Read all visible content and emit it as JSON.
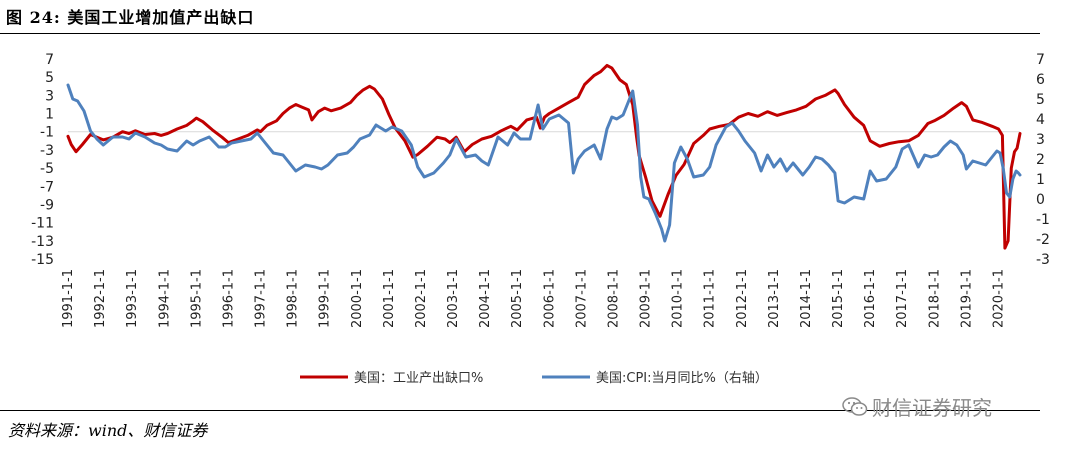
{
  "figure": {
    "title": "图 24:  美国工业增加值产出缺口",
    "source": "资料来源：wind、财信证券",
    "watermark": "财信证券研究",
    "watermark_icon": "wechat-icon"
  },
  "chart_data": {
    "type": "line",
    "title": "",
    "xlabel": "",
    "ylabel": "",
    "x_range": [
      1991.0,
      2020.67
    ],
    "x_tick_labels": [
      "1991-1-1",
      "1992-1-1",
      "1993-1-1",
      "1994-1-1",
      "1995-1-1",
      "1996-1-1",
      "1997-1-1",
      "1998-1-1",
      "1999-1-1",
      "2000-1-1",
      "2001-1-1",
      "2002-1-1",
      "2003-1-1",
      "2004-1-1",
      "2005-1-1",
      "2006-1-1",
      "2007-1-1",
      "2008-1-1",
      "2009-1-1",
      "2010-1-1",
      "2011-1-1",
      "2012-1-1",
      "2013-1-1",
      "2014-1-1",
      "2015-1-1",
      "2016-1-1",
      "2017-1-1",
      "2018-1-1",
      "2019-1-1",
      "2020-1-1"
    ],
    "y_left": {
      "ylim": [
        -15,
        7
      ],
      "ticks": [
        7,
        5,
        3,
        1,
        -1,
        -3,
        -5,
        -7,
        -9,
        -11,
        -13,
        -15
      ]
    },
    "y_right": {
      "ylim": [
        -3,
        7
      ],
      "ticks": [
        7,
        6,
        5,
        4,
        3,
        2,
        1,
        0,
        -1,
        -2,
        -3
      ]
    },
    "grid": false,
    "legend_position": "bottom",
    "series": [
      {
        "name": "美国：工业产出缺口%",
        "axis": "left",
        "color": "#c00000",
        "points": [
          [
            1991.0,
            -1.5
          ],
          [
            1991.1,
            -2.4
          ],
          [
            1991.25,
            -3.2
          ],
          [
            1991.45,
            -2.4
          ],
          [
            1991.7,
            -1.3
          ],
          [
            1991.9,
            -1.6
          ],
          [
            1992.1,
            -1.9
          ],
          [
            1992.4,
            -1.6
          ],
          [
            1992.7,
            -1.0
          ],
          [
            1992.9,
            -1.2
          ],
          [
            1993.1,
            -0.9
          ],
          [
            1993.4,
            -1.3
          ],
          [
            1993.7,
            -1.2
          ],
          [
            1993.9,
            -1.4
          ],
          [
            1994.1,
            -1.2
          ],
          [
            1994.4,
            -0.7
          ],
          [
            1994.7,
            -0.3
          ],
          [
            1994.9,
            0.2
          ],
          [
            1995.0,
            0.5
          ],
          [
            1995.2,
            0.1
          ],
          [
            1995.5,
            -0.8
          ],
          [
            1995.8,
            -1.6
          ],
          [
            1996.0,
            -2.2
          ],
          [
            1996.3,
            -1.8
          ],
          [
            1996.6,
            -1.4
          ],
          [
            1996.9,
            -0.8
          ],
          [
            1997.0,
            -1.0
          ],
          [
            1997.2,
            -0.3
          ],
          [
            1997.5,
            0.2
          ],
          [
            1997.7,
            1.0
          ],
          [
            1997.9,
            1.6
          ],
          [
            1998.1,
            2.0
          ],
          [
            1998.3,
            1.7
          ],
          [
            1998.5,
            1.4
          ],
          [
            1998.6,
            0.3
          ],
          [
            1998.8,
            1.2
          ],
          [
            1999.0,
            1.6
          ],
          [
            1999.2,
            1.3
          ],
          [
            1999.5,
            1.6
          ],
          [
            1999.8,
            2.2
          ],
          [
            2000.0,
            3.0
          ],
          [
            2000.2,
            3.6
          ],
          [
            2000.4,
            4.0
          ],
          [
            2000.55,
            3.7
          ],
          [
            2000.8,
            2.6
          ],
          [
            2001.0,
            0.9
          ],
          [
            2001.2,
            -0.6
          ],
          [
            2001.5,
            -2.0
          ],
          [
            2001.75,
            -3.8
          ],
          [
            2001.9,
            -3.5
          ],
          [
            2002.2,
            -2.6
          ],
          [
            2002.5,
            -1.6
          ],
          [
            2002.75,
            -1.8
          ],
          [
            2002.9,
            -2.2
          ],
          [
            2003.1,
            -1.6
          ],
          [
            2003.35,
            -3.2
          ],
          [
            2003.6,
            -2.4
          ],
          [
            2003.9,
            -1.8
          ],
          [
            2004.2,
            -1.5
          ],
          [
            2004.5,
            -0.9
          ],
          [
            2004.8,
            -0.4
          ],
          [
            2005.0,
            -0.8
          ],
          [
            2005.3,
            0.3
          ],
          [
            2005.6,
            0.6
          ],
          [
            2005.72,
            -0.6
          ],
          [
            2005.85,
            0.6
          ],
          [
            2006.0,
            1.0
          ],
          [
            2006.3,
            1.6
          ],
          [
            2006.6,
            2.2
          ],
          [
            2006.9,
            2.8
          ],
          [
            2007.1,
            4.2
          ],
          [
            2007.4,
            5.2
          ],
          [
            2007.6,
            5.6
          ],
          [
            2007.8,
            6.3
          ],
          [
            2007.95,
            6.0
          ],
          [
            2008.2,
            4.7
          ],
          [
            2008.4,
            4.2
          ],
          [
            2008.6,
            2.0
          ],
          [
            2008.72,
            -1.6
          ],
          [
            2008.8,
            -3.6
          ],
          [
            2009.0,
            -6.0
          ],
          [
            2009.2,
            -8.6
          ],
          [
            2009.45,
            -10.3
          ],
          [
            2009.7,
            -7.9
          ],
          [
            2009.95,
            -5.8
          ],
          [
            2010.2,
            -4.6
          ],
          [
            2010.5,
            -2.3
          ],
          [
            2010.8,
            -1.4
          ],
          [
            2011.0,
            -0.7
          ],
          [
            2011.3,
            -0.4
          ],
          [
            2011.6,
            -0.2
          ],
          [
            2011.9,
            0.6
          ],
          [
            2012.2,
            1.0
          ],
          [
            2012.5,
            0.7
          ],
          [
            2012.8,
            1.2
          ],
          [
            2013.1,
            0.8
          ],
          [
            2013.4,
            1.1
          ],
          [
            2013.7,
            1.4
          ],
          [
            2014.0,
            1.8
          ],
          [
            2014.3,
            2.6
          ],
          [
            2014.6,
            3.0
          ],
          [
            2014.9,
            3.6
          ],
          [
            2015.0,
            3.2
          ],
          [
            2015.2,
            2.0
          ],
          [
            2015.5,
            0.6
          ],
          [
            2015.8,
            -0.3
          ],
          [
            2016.0,
            -2.0
          ],
          [
            2016.3,
            -2.6
          ],
          [
            2016.6,
            -2.3
          ],
          [
            2016.9,
            -2.1
          ],
          [
            2017.2,
            -2.0
          ],
          [
            2017.5,
            -1.4
          ],
          [
            2017.8,
            -0.1
          ],
          [
            2018.0,
            0.2
          ],
          [
            2018.3,
            0.8
          ],
          [
            2018.6,
            1.6
          ],
          [
            2018.85,
            2.2
          ],
          [
            2019.0,
            1.8
          ],
          [
            2019.2,
            0.3
          ],
          [
            2019.5,
            0.0
          ],
          [
            2019.8,
            -0.4
          ],
          [
            2020.0,
            -0.7
          ],
          [
            2020.12,
            -1.4
          ],
          [
            2020.2,
            -13.8
          ],
          [
            2020.3,
            -13.0
          ],
          [
            2020.4,
            -5.0
          ],
          [
            2020.5,
            -3.2
          ],
          [
            2020.58,
            -2.8
          ],
          [
            2020.67,
            -1.2
          ]
        ]
      },
      {
        "name": "美国:CPI:当月同比%（右轴）",
        "axis": "right",
        "color": "#4f81bd",
        "points": [
          [
            1991.0,
            5.7
          ],
          [
            1991.15,
            5.0
          ],
          [
            1991.3,
            4.9
          ],
          [
            1991.5,
            4.4
          ],
          [
            1991.7,
            3.4
          ],
          [
            1991.9,
            3.0
          ],
          [
            1992.1,
            2.7
          ],
          [
            1992.4,
            3.1
          ],
          [
            1992.7,
            3.1
          ],
          [
            1992.9,
            3.0
          ],
          [
            1993.1,
            3.3
          ],
          [
            1993.4,
            3.1
          ],
          [
            1993.7,
            2.8
          ],
          [
            1993.9,
            2.7
          ],
          [
            1994.1,
            2.5
          ],
          [
            1994.4,
            2.4
          ],
          [
            1994.7,
            2.9
          ],
          [
            1994.9,
            2.7
          ],
          [
            1995.1,
            2.9
          ],
          [
            1995.4,
            3.1
          ],
          [
            1995.7,
            2.6
          ],
          [
            1995.9,
            2.6
          ],
          [
            1996.1,
            2.8
          ],
          [
            1996.4,
            2.9
          ],
          [
            1996.7,
            3.0
          ],
          [
            1996.9,
            3.3
          ],
          [
            1997.1,
            2.9
          ],
          [
            1997.4,
            2.3
          ],
          [
            1997.7,
            2.2
          ],
          [
            1997.9,
            1.8
          ],
          [
            1998.1,
            1.4
          ],
          [
            1998.4,
            1.7
          ],
          [
            1998.7,
            1.6
          ],
          [
            1998.9,
            1.5
          ],
          [
            1999.1,
            1.7
          ],
          [
            1999.4,
            2.2
          ],
          [
            1999.7,
            2.3
          ],
          [
            1999.9,
            2.6
          ],
          [
            2000.1,
            3.0
          ],
          [
            2000.4,
            3.2
          ],
          [
            2000.6,
            3.7
          ],
          [
            2000.9,
            3.4
          ],
          [
            2001.1,
            3.6
          ],
          [
            2001.4,
            3.4
          ],
          [
            2001.7,
            2.7
          ],
          [
            2001.9,
            1.6
          ],
          [
            2002.1,
            1.1
          ],
          [
            2002.4,
            1.3
          ],
          [
            2002.7,
            1.8
          ],
          [
            2002.9,
            2.2
          ],
          [
            2003.1,
            3.0
          ],
          [
            2003.4,
            2.1
          ],
          [
            2003.7,
            2.2
          ],
          [
            2003.9,
            1.9
          ],
          [
            2004.1,
            1.7
          ],
          [
            2004.4,
            3.1
          ],
          [
            2004.7,
            2.7
          ],
          [
            2004.9,
            3.3
          ],
          [
            2005.1,
            3.0
          ],
          [
            2005.4,
            3.0
          ],
          [
            2005.65,
            4.7
          ],
          [
            2005.8,
            3.5
          ],
          [
            2006.0,
            4.0
          ],
          [
            2006.3,
            4.2
          ],
          [
            2006.6,
            3.8
          ],
          [
            2006.75,
            1.3
          ],
          [
            2006.9,
            2.0
          ],
          [
            2007.1,
            2.4
          ],
          [
            2007.4,
            2.7
          ],
          [
            2007.6,
            2.0
          ],
          [
            2007.8,
            3.5
          ],
          [
            2007.95,
            4.1
          ],
          [
            2008.1,
            4.0
          ],
          [
            2008.3,
            4.2
          ],
          [
            2008.5,
            5.0
          ],
          [
            2008.6,
            5.4
          ],
          [
            2008.75,
            3.7
          ],
          [
            2008.85,
            1.1
          ],
          [
            2008.95,
            0.1
          ],
          [
            2009.1,
            0.0
          ],
          [
            2009.3,
            -0.7
          ],
          [
            2009.5,
            -1.5
          ],
          [
            2009.6,
            -2.1
          ],
          [
            2009.75,
            -1.3
          ],
          [
            2009.9,
            1.8
          ],
          [
            2010.1,
            2.6
          ],
          [
            2010.3,
            2.0
          ],
          [
            2010.5,
            1.1
          ],
          [
            2010.8,
            1.2
          ],
          [
            2011.0,
            1.6
          ],
          [
            2011.2,
            2.7
          ],
          [
            2011.5,
            3.6
          ],
          [
            2011.7,
            3.8
          ],
          [
            2011.9,
            3.4
          ],
          [
            2012.1,
            2.9
          ],
          [
            2012.4,
            2.3
          ],
          [
            2012.6,
            1.4
          ],
          [
            2012.8,
            2.2
          ],
          [
            2013.0,
            1.6
          ],
          [
            2013.2,
            2.0
          ],
          [
            2013.4,
            1.4
          ],
          [
            2013.6,
            1.8
          ],
          [
            2013.9,
            1.2
          ],
          [
            2014.1,
            1.6
          ],
          [
            2014.3,
            2.1
          ],
          [
            2014.5,
            2.0
          ],
          [
            2014.7,
            1.7
          ],
          [
            2014.9,
            1.3
          ],
          [
            2015.0,
            -0.1
          ],
          [
            2015.2,
            -0.2
          ],
          [
            2015.5,
            0.1
          ],
          [
            2015.8,
            0.0
          ],
          [
            2016.0,
            1.4
          ],
          [
            2016.2,
            0.9
          ],
          [
            2016.5,
            1.0
          ],
          [
            2016.8,
            1.6
          ],
          [
            2017.0,
            2.5
          ],
          [
            2017.2,
            2.7
          ],
          [
            2017.5,
            1.6
          ],
          [
            2017.7,
            2.2
          ],
          [
            2017.9,
            2.1
          ],
          [
            2018.1,
            2.2
          ],
          [
            2018.3,
            2.6
          ],
          [
            2018.5,
            2.9
          ],
          [
            2018.7,
            2.7
          ],
          [
            2018.9,
            2.2
          ],
          [
            2019.0,
            1.5
          ],
          [
            2019.2,
            1.9
          ],
          [
            2019.4,
            1.8
          ],
          [
            2019.6,
            1.7
          ],
          [
            2019.8,
            2.1
          ],
          [
            2019.95,
            2.4
          ],
          [
            2020.05,
            2.3
          ],
          [
            2020.15,
            1.5
          ],
          [
            2020.25,
            0.3
          ],
          [
            2020.35,
            0.1
          ],
          [
            2020.45,
            1.0
          ],
          [
            2020.55,
            1.4
          ],
          [
            2020.62,
            1.3
          ],
          [
            2020.67,
            1.2
          ]
        ]
      }
    ]
  }
}
